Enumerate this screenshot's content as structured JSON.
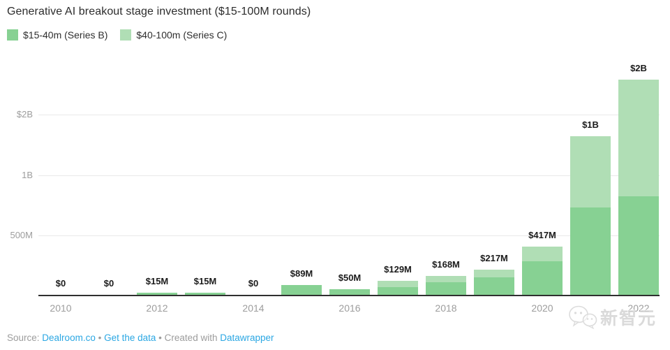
{
  "title": "Generative AI breakout stage investment ($15-100M rounds)",
  "legend": [
    {
      "label": "$15-40m (Series B)",
      "color": "#87d193"
    },
    {
      "label": "$40-100m (Series C)",
      "color": "#b0deb5"
    }
  ],
  "chart_data": {
    "type": "bar",
    "stacked": true,
    "title": "Generative AI breakout stage investment ($15-100M rounds)",
    "unit": "$M",
    "categories": [
      "2010",
      "2011",
      "2012",
      "2013",
      "2014",
      "2015",
      "2016",
      "2017",
      "2018",
      "2019",
      "2020",
      "2021",
      "2022"
    ],
    "series": [
      {
        "name": "$15-40m (Series B)",
        "values": [
          0,
          0,
          15,
          15,
          0,
          89,
          50,
          67,
          113,
          157,
          290,
          620,
          680
        ]
      },
      {
        "name": "$40-100m (Series C)",
        "values": [
          0,
          0,
          0,
          0,
          0,
          0,
          0,
          62,
          55,
          60,
          127,
          380,
          1320
        ]
      }
    ],
    "total_labels": [
      "$0",
      "$0",
      "$15M",
      "$15M",
      "$0",
      "$89M",
      "$50M",
      "$129M",
      "$168M",
      "$217M",
      "$417M",
      "$1B",
      "$2B"
    ],
    "y_ticks": [
      {
        "label": "$2B",
        "value": 2000
      },
      {
        "label": "1B",
        "value": 1000
      },
      {
        "label": "500M",
        "value": 500
      }
    ],
    "x_ticks": [
      "2010",
      "2012",
      "2014",
      "2016",
      "2018",
      "2020",
      "2022"
    ],
    "legend_position": "top-left",
    "grid": true
  },
  "footer": {
    "source_prefix": "Source:",
    "source_link": "Dealroom.co",
    "separator": "•",
    "data_link": "Get the data",
    "created_with": "Created with",
    "tool_link": "Datawrapper"
  },
  "watermark": {
    "text": "新智元"
  }
}
